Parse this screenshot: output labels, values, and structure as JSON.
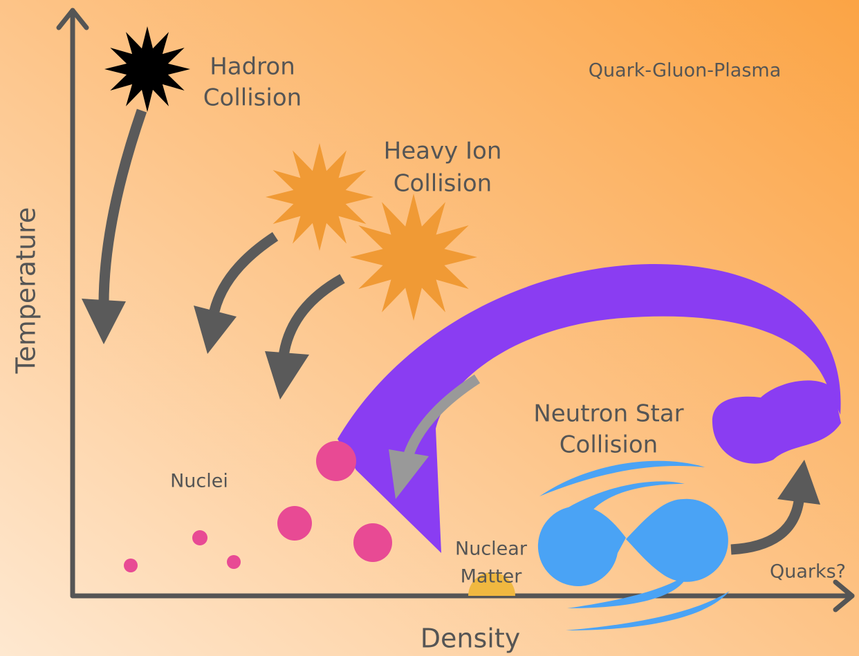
{
  "axes": {
    "x_label": "Density",
    "y_label": "Temperature"
  },
  "labels": {
    "hadron_collision": [
      "Hadron",
      "Collision"
    ],
    "heavy_ion_collision": [
      "Heavy Ion",
      "Collision"
    ],
    "quark_gluon_plasma": "Quark-Gluon-Plasma",
    "neutron_star_collision": [
      "Neutron Star",
      "Collision"
    ],
    "nuclei": "Nuclei",
    "nuclear_matter": [
      "Nuclear",
      "Matter"
    ],
    "quarks": "Quarks?"
  }
}
